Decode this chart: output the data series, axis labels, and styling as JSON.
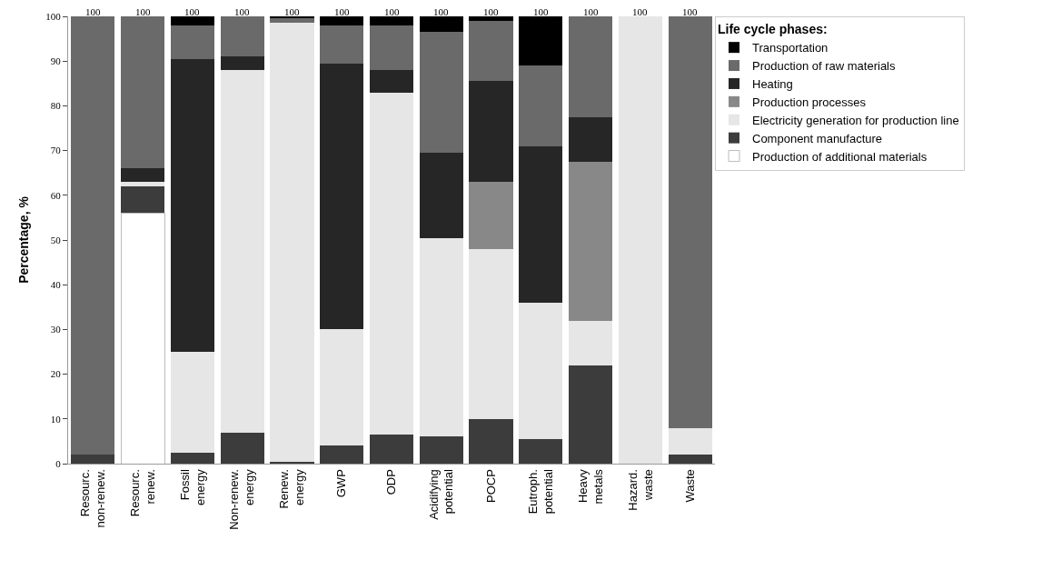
{
  "chart_data": {
    "type": "bar",
    "stacked": true,
    "ylabel": "Percentage, %",
    "legend_title": "Life cycle phases:",
    "legend": "top right",
    "categories": [
      "Resourc.\nnon-renew.",
      "Resourc.\nrenew.",
      "Fossil\nenergy",
      "Non-renew.\nenergy",
      "Renew.\nenergy",
      "GWP",
      "ODP",
      "Acidifying\npotential",
      "POCP",
      "Eutroph.\npotential",
      "Heavy\nmetals",
      "Hazard.\nwaste",
      "Waste"
    ],
    "series": [
      {
        "name": "Production of additional materials",
        "color": "#ffffff",
        "values": [
          0,
          56,
          0,
          0,
          0,
          0,
          0,
          0,
          0,
          0,
          0,
          0,
          0
        ]
      },
      {
        "name": "Component manufacture",
        "color": "#3c3c3c",
        "values": [
          2,
          6,
          2.5,
          7,
          0.5,
          4,
          6.5,
          6,
          10,
          5.5,
          22,
          0,
          2
        ]
      },
      {
        "name": "Electricity generation for production line",
        "color": "#e6e6e6",
        "values": [
          0,
          1,
          22.5,
          81,
          98,
          26,
          76.5,
          44.5,
          38,
          30.5,
          10,
          100,
          6
        ]
      },
      {
        "name": "Production processes",
        "color": "#888888",
        "values": [
          0,
          0,
          0,
          0,
          0,
          0,
          0,
          0,
          15,
          0,
          35.5,
          0,
          0
        ]
      },
      {
        "name": "Heating",
        "color": "#262626",
        "values": [
          0,
          3,
          65.5,
          3,
          0,
          59.5,
          5,
          19,
          22.5,
          35,
          10,
          0,
          0
        ]
      },
      {
        "name": "Production of raw materials",
        "color": "#6a6a6a",
        "values": [
          98,
          34,
          7.5,
          9,
          1,
          8.5,
          10,
          27,
          13.5,
          18,
          22.5,
          0,
          92
        ]
      },
      {
        "name": "Transportation",
        "color": "#000000",
        "values": [
          0,
          0,
          2,
          0,
          0.5,
          2,
          2,
          3.5,
          1,
          11,
          0,
          0,
          0
        ]
      }
    ],
    "totals": [
      "100",
      "100",
      "100",
      "100",
      "100",
      "100",
      "100",
      "100",
      "100",
      "100",
      "100",
      "100",
      "100"
    ],
    "ylim": [
      0,
      100
    ],
    "yticks": [
      0,
      10,
      20,
      30,
      40,
      50,
      60,
      70,
      80,
      90,
      100
    ]
  }
}
